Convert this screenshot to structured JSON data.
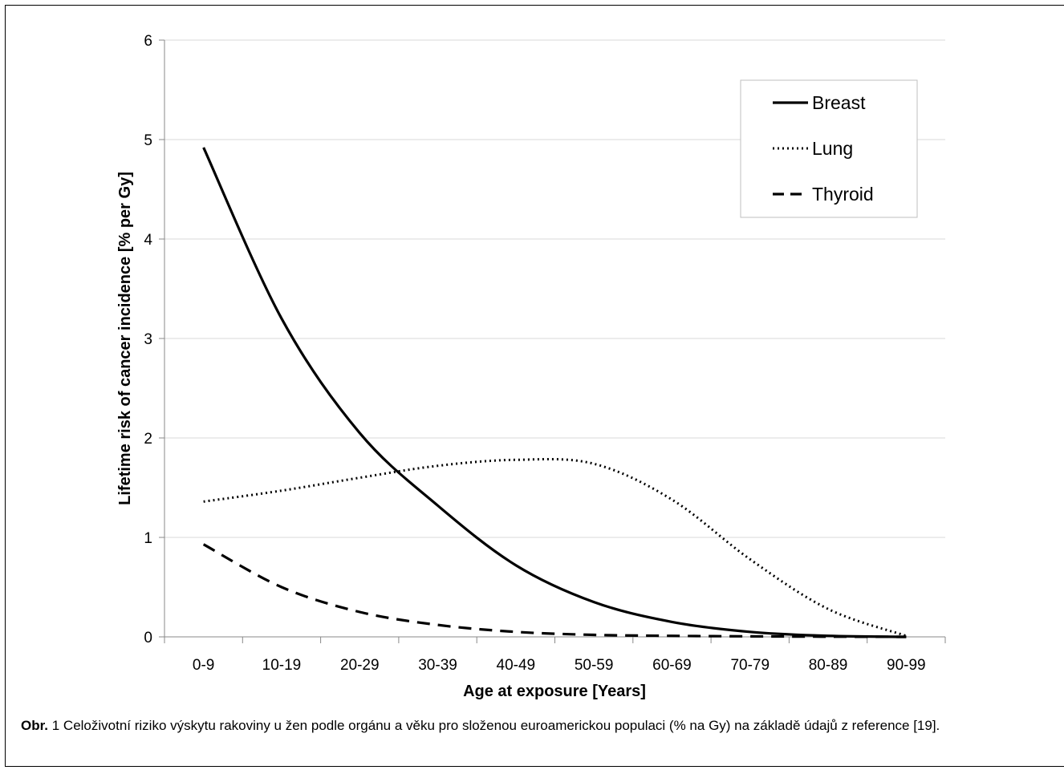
{
  "chart_data": {
    "type": "line",
    "categories": [
      "0-9",
      "10-19",
      "20-29",
      "30-39",
      "40-49",
      "50-59",
      "60-69",
      "70-79",
      "80-89",
      "90-99"
    ],
    "yticks": [
      "0",
      "1",
      "2",
      "3",
      "4",
      "5",
      "6"
    ],
    "ylim": [
      0,
      6
    ],
    "xlabel": "Age at exposure [Years]",
    "ylabel": "Lifetime risk of cancer incidence [% per Gy]",
    "grid": true,
    "legend_position": "top-right",
    "series": [
      {
        "name": "Breast",
        "style": "solid",
        "values": [
          4.92,
          3.2,
          2.05,
          1.32,
          0.72,
          0.35,
          0.15,
          0.05,
          0.01,
          0.0
        ]
      },
      {
        "name": "Lung",
        "style": "dotted",
        "values": [
          1.36,
          1.47,
          1.6,
          1.72,
          1.78,
          1.74,
          1.38,
          0.78,
          0.28,
          0.01
        ]
      },
      {
        "name": "Thyroid",
        "style": "dashed",
        "values": [
          0.93,
          0.5,
          0.25,
          0.12,
          0.05,
          0.02,
          0.01,
          0.005,
          0.002,
          0.0
        ]
      }
    ]
  },
  "caption": {
    "label": "Obr.",
    "text": " 1 Celoživotní riziko výskytu rakoviny u žen podle orgánu a věku pro složenou euroamerickou populaci (% na Gy) na základě údajů z reference [19]."
  },
  "colors": {
    "line": "#000000",
    "grid": "#d9d9d9",
    "axis": "#888888"
  }
}
